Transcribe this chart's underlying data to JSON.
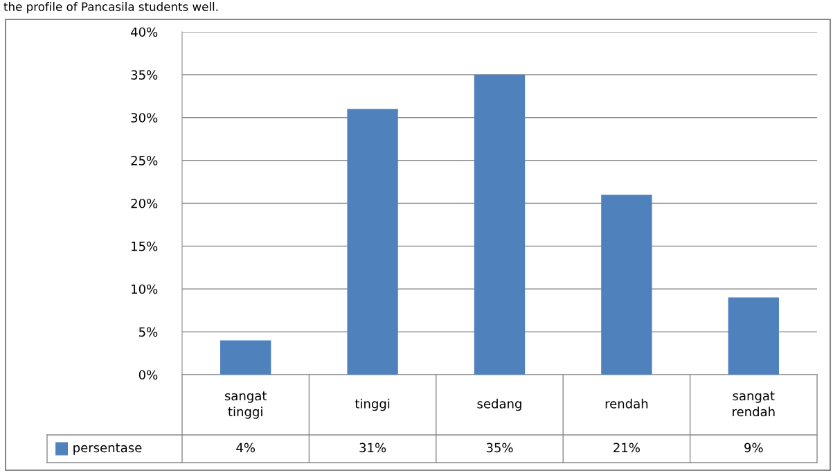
{
  "chart_data": {
    "type": "bar",
    "categories": [
      "sangat tinggi",
      "tinggi",
      "sedang",
      "rendah",
      "sangat rendah"
    ],
    "series": [
      {
        "name": "persentase",
        "color": "#4f81bd",
        "values": [
          4,
          31,
          35,
          21,
          9
        ],
        "value_labels": [
          "4%",
          "31%",
          "35%",
          "21%",
          "9%"
        ]
      }
    ],
    "ylim": [
      0,
      40
    ],
    "yticks": [
      {
        "value": 0,
        "label": "0%"
      },
      {
        "value": 5,
        "label": "5%"
      },
      {
        "value": 10,
        "label": "10%"
      },
      {
        "value": 15,
        "label": "15%"
      },
      {
        "value": 20,
        "label": "20%"
      },
      {
        "value": 25,
        "label": "25%"
      },
      {
        "value": 30,
        "label": "30%"
      },
      {
        "value": 35,
        "label": "35%"
      },
      {
        "value": 40,
        "label": "40%"
      }
    ],
    "grid": "y",
    "legend": "bottom",
    "annotations": [
      "the profile of Pancasila students well."
    ]
  }
}
